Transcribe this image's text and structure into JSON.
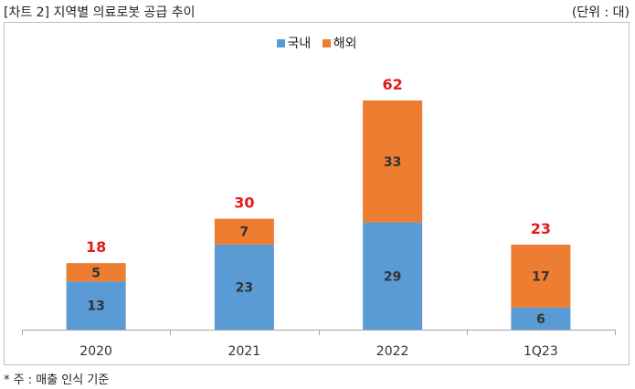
{
  "header": {
    "title": "[차트 2] 지역별 의료로봇 공급 추이",
    "unit": "(단위 : 대)"
  },
  "footer": {
    "note": "* 주 : 매출 인식 기준"
  },
  "colors": {
    "domestic": "#5b9bd5",
    "overseas": "#ed7d31",
    "total_label": "#e31b1b",
    "segment_label": "#333333",
    "axis": "#a6a6a6"
  },
  "chart_data": {
    "type": "bar",
    "stacked": true,
    "categories": [
      "2020",
      "2021",
      "2022",
      "1Q23"
    ],
    "series": [
      {
        "name": "국내",
        "values": [
          13,
          23,
          29,
          6
        ]
      },
      {
        "name": "해외",
        "values": [
          5,
          7,
          33,
          17
        ]
      }
    ],
    "totals": [
      18,
      30,
      62,
      23
    ],
    "ylim": [
      0,
      62
    ],
    "legend": "top-center",
    "grid": false
  }
}
